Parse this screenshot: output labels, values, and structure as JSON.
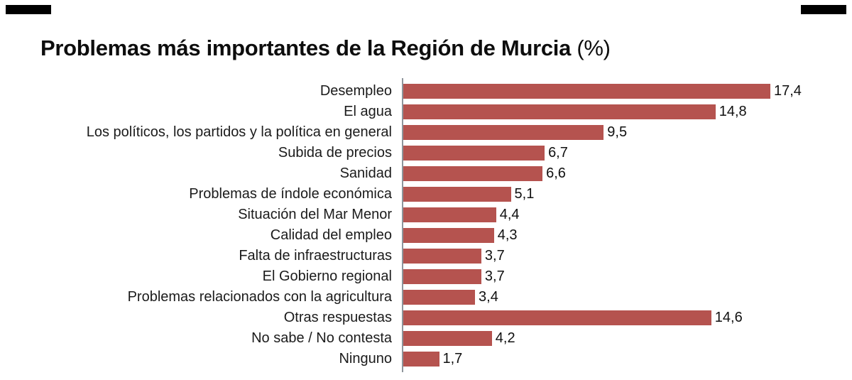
{
  "page": {
    "title_bold": "Problemas más importantes de la Región de Murcia",
    "title_suffix": "(%)"
  },
  "chart_data": {
    "type": "bar",
    "orientation": "horizontal",
    "title": "Problemas más importantes de la Región de Murcia (%)",
    "xlabel": "",
    "ylabel": "",
    "xlim": [
      0,
      18
    ],
    "grid": false,
    "legend": "none",
    "bar_color": "#b5534f",
    "categories": [
      "Desempleo",
      "El agua",
      "Los políticos, los partidos y la política en general",
      "Subida de precios",
      "Sanidad",
      "Problemas de índole económica",
      "Situación del Mar Menor",
      "Calidad del empleo",
      "Falta de infraestructuras",
      "El Gobierno regional",
      "Problemas relacionados con la agricultura",
      "Otras respuestas",
      "No sabe / No contesta",
      "Ninguno"
    ],
    "values": [
      17.4,
      14.8,
      9.5,
      6.7,
      6.6,
      5.1,
      4.4,
      4.3,
      3.7,
      3.7,
      3.4,
      14.6,
      4.2,
      1.7
    ],
    "value_labels": [
      "17,4",
      "14,8",
      "9,5",
      "6,7",
      "6,6",
      "5,1",
      "4,4",
      "4,3",
      "3,7",
      "3,7",
      "3,4",
      "14,6",
      "4,2",
      "1,7"
    ]
  }
}
